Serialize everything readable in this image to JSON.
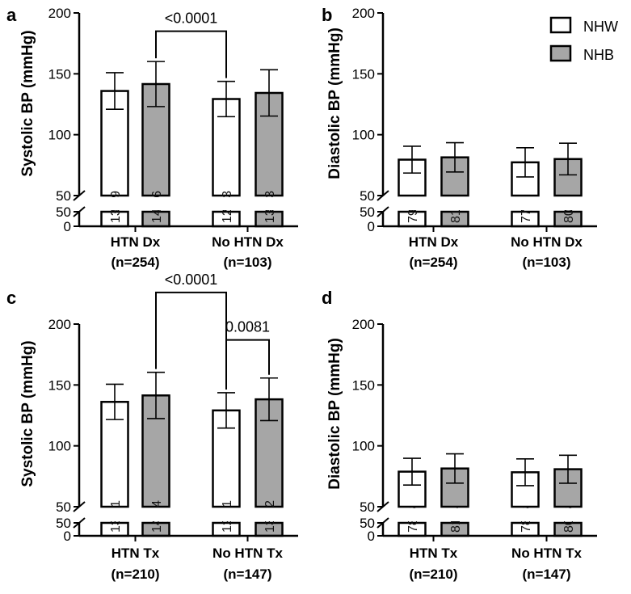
{
  "legend": {
    "nhw": {
      "label": "NHW",
      "color": "#ffffff"
    },
    "nhb": {
      "label": "NHB",
      "color": "#a6a6a6"
    }
  },
  "chart_data": [
    {
      "panel": "a",
      "type": "bar",
      "ylabel": "Systolic BP (mmHg)",
      "yticks_upper": [
        50,
        100,
        150,
        200
      ],
      "yticks_lower": [
        0,
        50
      ],
      "ylim_upper": [
        50,
        200
      ],
      "axis_break": true,
      "categories": [
        {
          "name": "HTN Dx",
          "n": "(n=254)"
        },
        {
          "name": "No HTN Dx",
          "n": "(n=103)"
        }
      ],
      "series": [
        {
          "name": "NHW",
          "values": [
            135.9,
            129.3
          ],
          "value_labels": [
            "135.9",
            "129.3"
          ],
          "err": [
            15,
            14.5
          ]
        },
        {
          "name": "NHB",
          "values": [
            141.6,
            134.3
          ],
          "value_labels": [
            "141.6",
            "134.3"
          ],
          "err": [
            18.5,
            19
          ]
        }
      ],
      "comparisons": [
        {
          "from": [
            0,
            1
          ],
          "to": [
            1,
            0
          ],
          "label": "<0.0001",
          "bracket_y": 185
        }
      ]
    },
    {
      "panel": "b",
      "type": "bar",
      "ylabel": "Diastolic BP (mmHg)",
      "yticks_upper": [
        50,
        100,
        150,
        200
      ],
      "yticks_lower": [
        0,
        50
      ],
      "ylim_upper": [
        50,
        200
      ],
      "axis_break": true,
      "categories": [
        {
          "name": "HTN Dx",
          "n": "(n=254)"
        },
        {
          "name": "No HTN Dx",
          "n": "(n=103)"
        }
      ],
      "series": [
        {
          "name": "NHW",
          "values": [
            79.5,
            77.3
          ],
          "value_labels": [
            "79.5",
            "77.3"
          ],
          "err": [
            11,
            12
          ]
        },
        {
          "name": "NHB",
          "values": [
            81.4,
            80.0
          ],
          "value_labels": [
            "81.4",
            "80.0"
          ],
          "err": [
            12,
            13
          ]
        }
      ],
      "comparisons": []
    },
    {
      "panel": "c",
      "type": "bar",
      "ylabel": "Systolic BP (mmHg)",
      "yticks_upper": [
        50,
        100,
        150,
        200
      ],
      "yticks_lower": [
        0,
        50
      ],
      "ylim_upper": [
        50,
        200
      ],
      "axis_break": true,
      "categories": [
        {
          "name": "HTN Tx",
          "n": "(n=210)"
        },
        {
          "name": "No HTN Tx",
          "n": "(n=147)"
        }
      ],
      "series": [
        {
          "name": "NHW",
          "values": [
            136.1,
            129.1
          ],
          "value_labels": [
            "136.1",
            "129.1"
          ],
          "err": [
            14.5,
            14.5
          ]
        },
        {
          "name": "NHB",
          "values": [
            141.4,
            138.2
          ],
          "value_labels": [
            "141.4",
            "138.2"
          ],
          "err": [
            19,
            17.5
          ]
        }
      ],
      "comparisons": [
        {
          "from": [
            0,
            1
          ],
          "to": [
            1,
            0
          ],
          "label": "<0.0001",
          "bracket_y": 226
        },
        {
          "from": [
            1,
            0
          ],
          "to": [
            1,
            1
          ],
          "label": "0.0081",
          "bracket_y": 187
        }
      ]
    },
    {
      "panel": "d",
      "type": "bar",
      "ylabel": "Diastolic BP (mmHg)",
      "yticks_upper": [
        50,
        100,
        150,
        200
      ],
      "yticks_lower": [
        0,
        50
      ],
      "ylim_upper": [
        50,
        200
      ],
      "axis_break": true,
      "categories": [
        {
          "name": "HTN Tx",
          "n": "(n=210)"
        },
        {
          "name": "No HTN Tx",
          "n": "(n=147)"
        }
      ],
      "series": [
        {
          "name": "NHW",
          "values": [
            78.8,
            78.3
          ],
          "value_labels": [
            "78.8",
            "78.3"
          ],
          "err": [
            11,
            11
          ]
        },
        {
          "name": "NHB",
          "values": [
            81.4,
            80.8
          ],
          "value_labels": [
            "81.4",
            "80.8"
          ],
          "err": [
            12,
            11.5
          ]
        }
      ],
      "comparisons": []
    }
  ]
}
